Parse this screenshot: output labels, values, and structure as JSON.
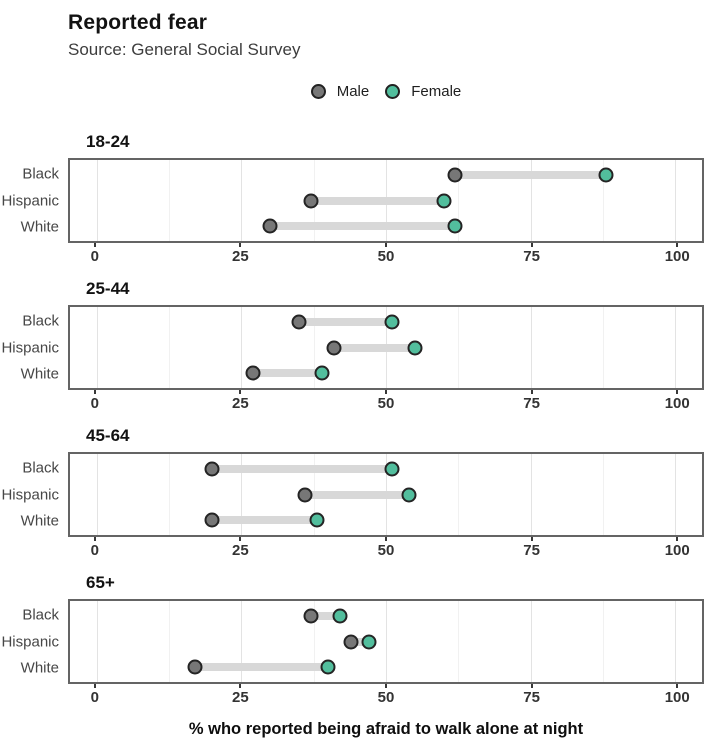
{
  "header": {
    "title": "Reported fear",
    "subtitle": "Source: General Social Survey"
  },
  "legend": {
    "items": [
      {
        "label": "Male",
        "color": "#777777"
      },
      {
        "label": "Female",
        "color": "#52be9d"
      }
    ]
  },
  "colors": {
    "male_fill": "#777777",
    "female_fill": "#52be9d",
    "dot_border": "#242424",
    "connector": "#d8d8d8",
    "panel_border": "#646464",
    "grid_major": "#e3e3e3",
    "grid_minor": "#f1f1f1",
    "axis_text": "#333333",
    "category_text": "#474747"
  },
  "chart_data": {
    "type": "scatter",
    "subtype": "dumbbell",
    "title": "Reported fear",
    "subtitle": "Source: General Social Survey",
    "xlabel": "% who reported being afraid to walk alone at night",
    "series_names": [
      "Male",
      "Female"
    ],
    "x_ticks": [
      0,
      25,
      50,
      75,
      100
    ],
    "x_minor_ticks": [
      12.5,
      37.5,
      62.5,
      87.5
    ],
    "xlim": [
      -4.6,
      104.6
    ],
    "grid": "vertical-only",
    "legend_position": "top-center",
    "row_fractions": [
      0.1875,
      0.5,
      0.8125
    ],
    "facets": [
      {
        "label": "18-24",
        "rows": [
          {
            "category": "Black",
            "male": 62,
            "female": 88
          },
          {
            "category": "Hispanic",
            "male": 37,
            "female": 60
          },
          {
            "category": "White",
            "male": 30,
            "female": 62
          }
        ]
      },
      {
        "label": "25-44",
        "rows": [
          {
            "category": "Black",
            "male": 35,
            "female": 51
          },
          {
            "category": "Hispanic",
            "male": 41,
            "female": 55
          },
          {
            "category": "White",
            "male": 27,
            "female": 39
          }
        ]
      },
      {
        "label": "45-64",
        "rows": [
          {
            "category": "Black",
            "male": 20,
            "female": 51
          },
          {
            "category": "Hispanic",
            "male": 36,
            "female": 54
          },
          {
            "category": "White",
            "male": 20,
            "female": 38
          }
        ]
      },
      {
        "label": "65+",
        "rows": [
          {
            "category": "Black",
            "male": 37,
            "female": 42
          },
          {
            "category": "Hispanic",
            "male": 44,
            "female": 47
          },
          {
            "category": "White",
            "male": 17,
            "female": 40
          }
        ]
      }
    ]
  }
}
